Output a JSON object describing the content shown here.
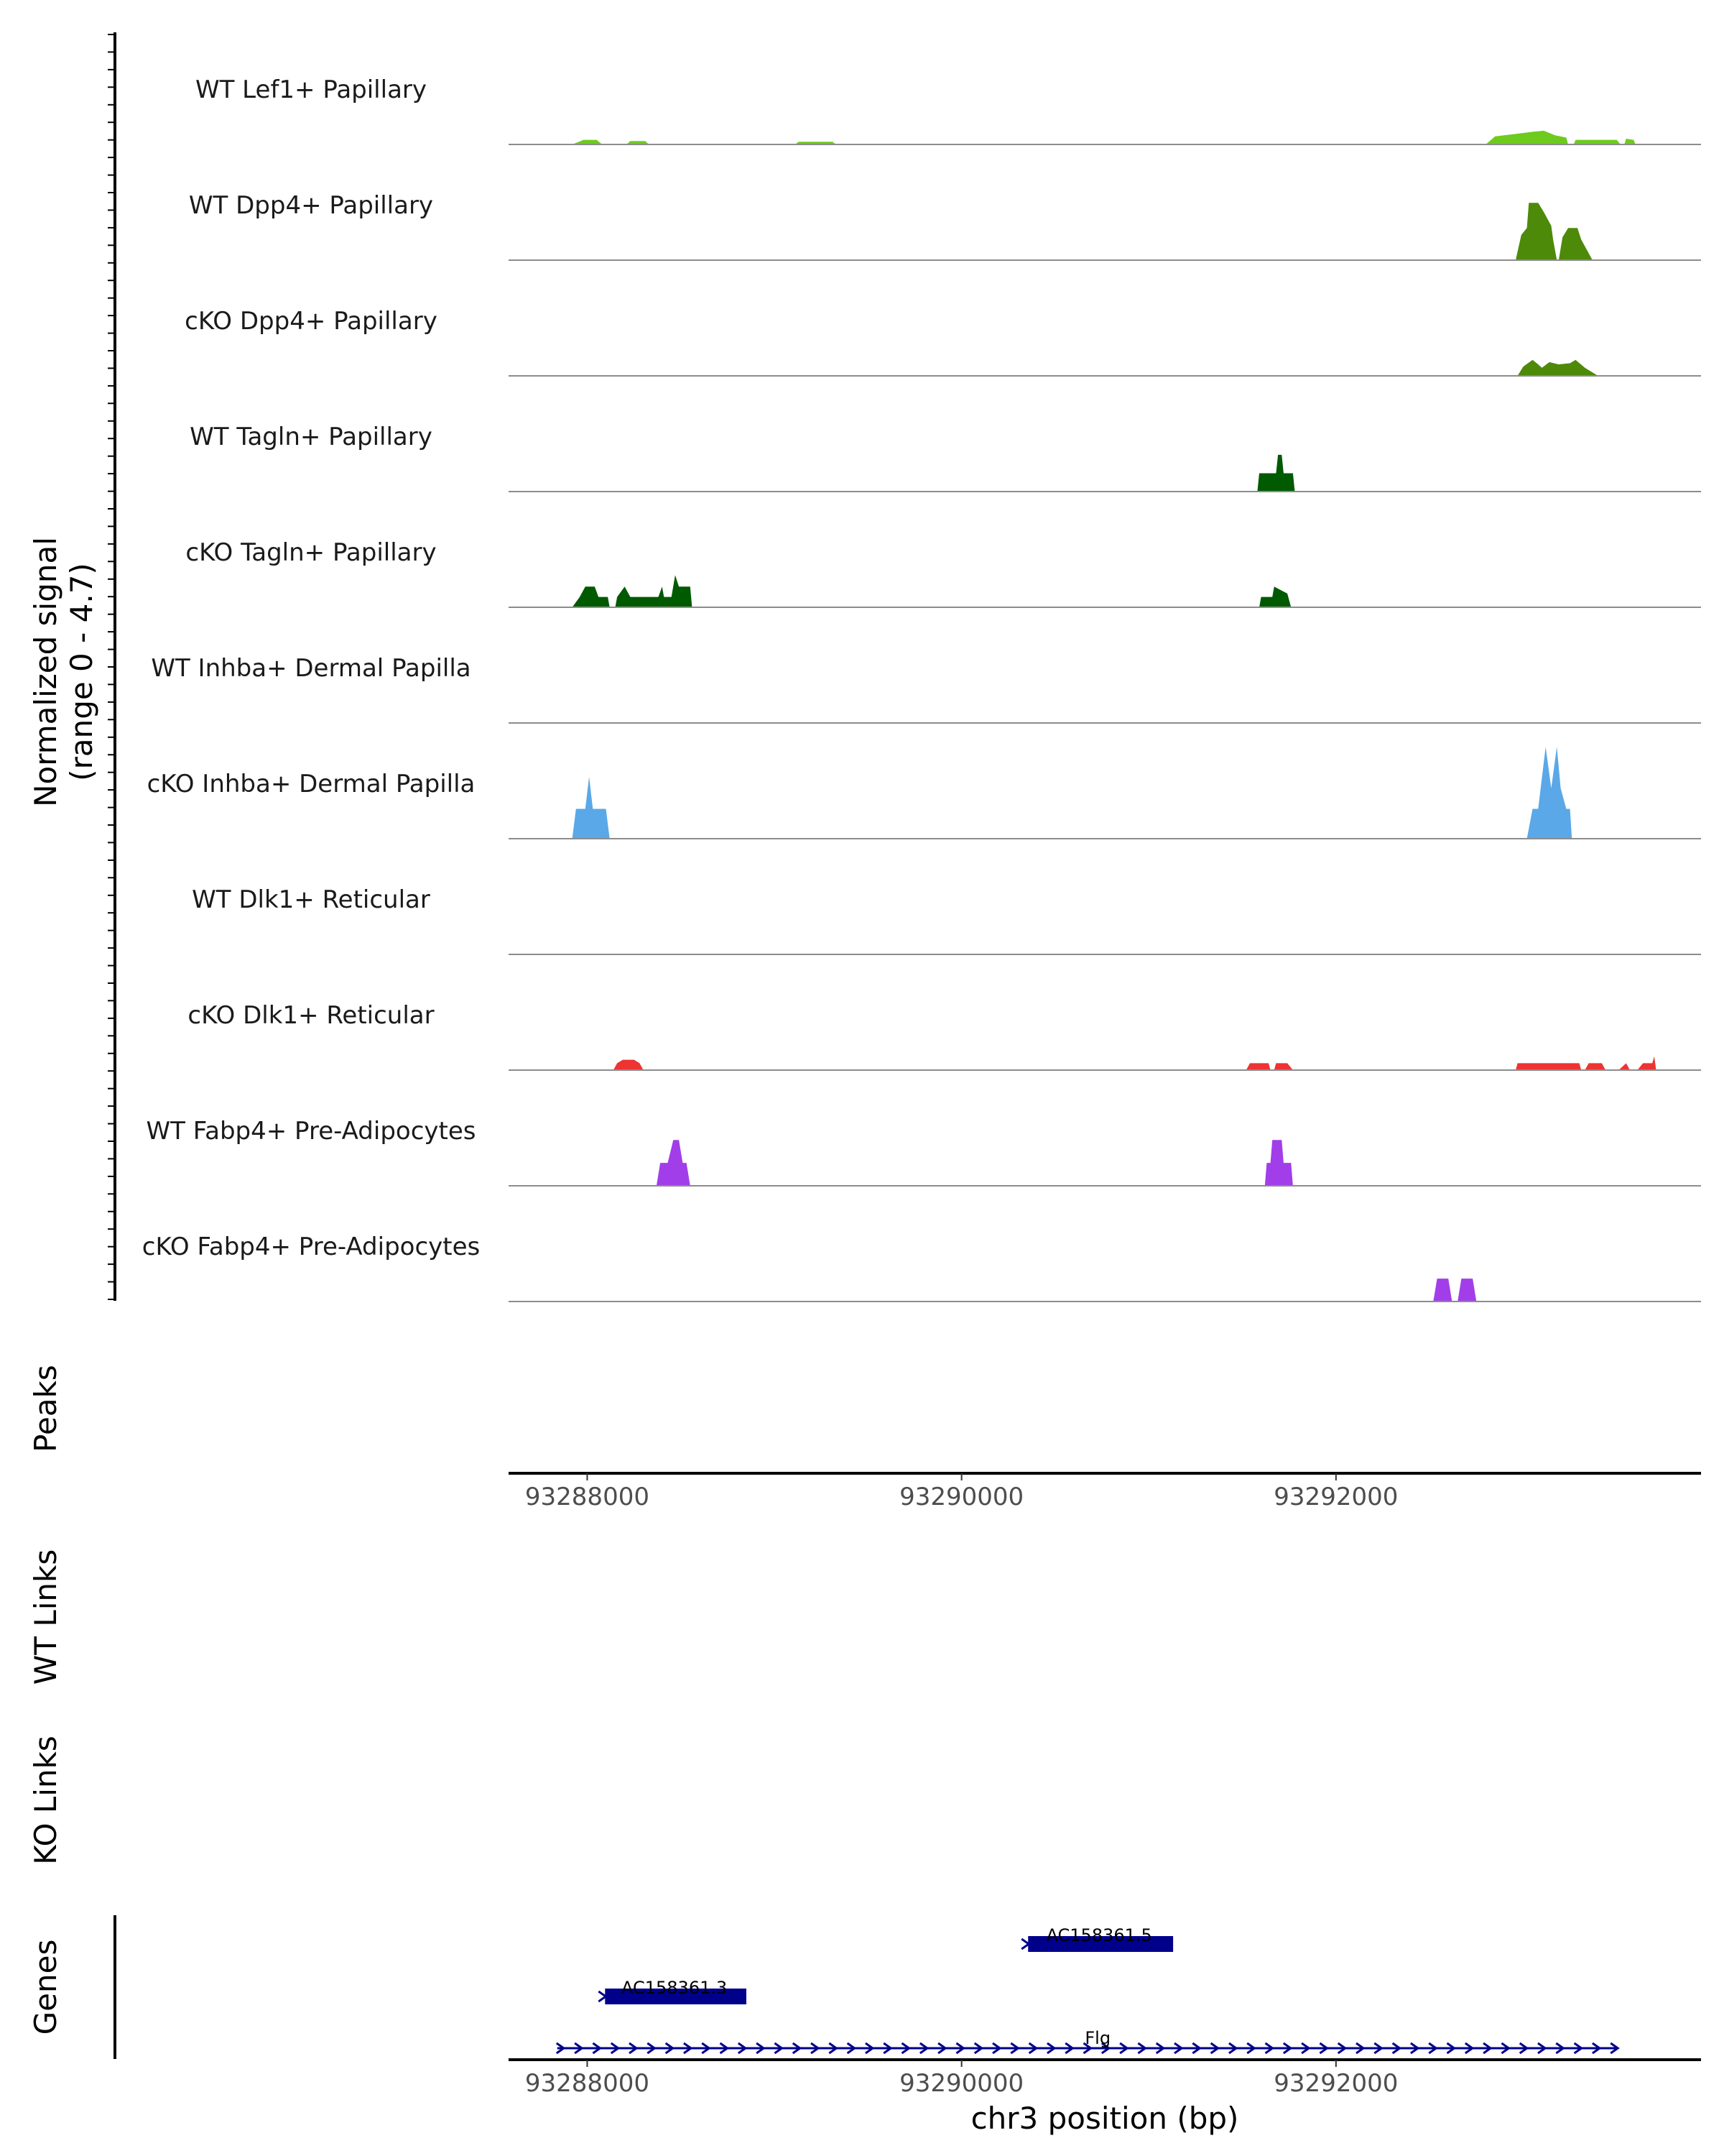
{
  "chart_data": {
    "type": "area",
    "region_title": "chr3 position (bp)",
    "xlim": [
      93287580,
      93293950
    ],
    "x_ticks": [
      {
        "value": 93288000,
        "label": "93288000"
      },
      {
        "value": 93290000,
        "label": "93290000"
      },
      {
        "value": 93292000,
        "label": "93292000"
      }
    ],
    "coverage_ylabel": [
      "Normalized signal",
      "(range 0 - 4.7)"
    ],
    "y_range": [
      0,
      4.7
    ],
    "y_minor_ticks": 72,
    "tracks": [
      {
        "name": "WT Lef1+ Papillary",
        "color": "#6ecb1e",
        "peaks": [
          [
            [
              93287920,
              0
            ],
            [
              93287980,
              0.2
            ],
            [
              93288050,
              0.2
            ],
            [
              93288080,
              0
            ]
          ],
          [
            [
              93288210,
              0
            ],
            [
              93288230,
              0.15
            ],
            [
              93288310,
              0.15
            ],
            [
              93288330,
              0
            ]
          ],
          [
            [
              93289110,
              0
            ],
            [
              93289130,
              0.12
            ],
            [
              93289310,
              0.12
            ],
            [
              93289330,
              0
            ]
          ],
          [
            [
              93292800,
              0
            ],
            [
              93292850,
              0.35
            ],
            [
              93292950,
              0.45
            ],
            [
              93293050,
              0.55
            ],
            [
              93293110,
              0.6
            ],
            [
              93293170,
              0.4
            ],
            [
              93293230,
              0.3
            ],
            [
              93293240,
              0
            ],
            [
              93293270,
              0
            ],
            [
              93293280,
              0.2
            ],
            [
              93293500,
              0.2
            ],
            [
              93293520,
              0
            ],
            [
              93293540,
              0
            ],
            [
              93293550,
              0.25
            ],
            [
              93293590,
              0.2
            ],
            [
              93293600,
              0
            ]
          ]
        ]
      },
      {
        "name": "WT Dpp4+ Papillary",
        "color": "#4d8a0a",
        "peaks": [
          [
            [
              93292960,
              0
            ],
            [
              93292990,
              1.1
            ],
            [
              93293020,
              1.4
            ],
            [
              93293030,
              2.5
            ],
            [
              93293080,
              2.5
            ],
            [
              93293110,
              2.1
            ],
            [
              93293150,
              1.5
            ],
            [
              93293160,
              0.9
            ],
            [
              93293180,
              0
            ],
            [
              93293190,
              0
            ],
            [
              93293210,
              1.0
            ],
            [
              93293240,
              1.4
            ],
            [
              93293290,
              1.4
            ],
            [
              93293310,
              0.9
            ],
            [
              93293370,
              0
            ]
          ]
        ]
      },
      {
        "name": "cKO Dpp4+ Papillary",
        "color": "#4d8a0a",
        "peaks": [
          [
            [
              93292970,
              0
            ],
            [
              93293000,
              0.4
            ],
            [
              93293050,
              0.7
            ],
            [
              93293080,
              0.5
            ],
            [
              93293100,
              0.35
            ],
            [
              93293140,
              0.6
            ],
            [
              93293190,
              0.5
            ],
            [
              93293250,
              0.55
            ],
            [
              93293280,
              0.7
            ],
            [
              93293330,
              0.35
            ],
            [
              93293400,
              0
            ]
          ]
        ]
      },
      {
        "name": "WT Tagln+ Papillary",
        "color": "#005a00",
        "peaks": [
          [
            [
              93291580,
              0
            ],
            [
              93291590,
              0.8
            ],
            [
              93291680,
              0.8
            ],
            [
              93291690,
              1.6
            ],
            [
              93291710,
              1.6
            ],
            [
              93291720,
              0.8
            ],
            [
              93291770,
              0.8
            ],
            [
              93291780,
              0
            ]
          ]
        ]
      },
      {
        "name": "cKO Tagln+ Papillary",
        "color": "#005a00",
        "peaks": [
          [
            [
              93287920,
              0
            ],
            [
              93287960,
              0.45
            ],
            [
              93287990,
              0.9
            ],
            [
              93288040,
              0.9
            ],
            [
              93288060,
              0.45
            ],
            [
              93288110,
              0.45
            ],
            [
              93288120,
              0
            ]
          ],
          [
            [
              93288150,
              0
            ],
            [
              93288160,
              0.45
            ],
            [
              93288200,
              0.9
            ],
            [
              93288230,
              0.45
            ],
            [
              93288380,
              0.45
            ],
            [
              93288400,
              0.9
            ],
            [
              93288410,
              0.45
            ],
            [
              93288450,
              0.45
            ],
            [
              93288470,
              1.4
            ],
            [
              93288490,
              0.9
            ],
            [
              93288550,
              0.9
            ],
            [
              93288560,
              0
            ]
          ],
          [
            [
              93291590,
              0
            ],
            [
              93291600,
              0.45
            ],
            [
              93291660,
              0.45
            ],
            [
              93291670,
              0.9
            ],
            [
              93291740,
              0.6
            ],
            [
              93291760,
              0
            ]
          ]
        ]
      },
      {
        "name": "WT Inhba+ Dermal Papilla",
        "color": "#5aa8e8",
        "peaks": []
      },
      {
        "name": "cKO Inhba+ Dermal Papilla",
        "color": "#5aa8e8",
        "peaks": [
          [
            [
              93287920,
              0
            ],
            [
              93287940,
              1.3
            ],
            [
              93287990,
              1.3
            ],
            [
              93288010,
              2.7
            ],
            [
              93288030,
              1.3
            ],
            [
              93288100,
              1.3
            ],
            [
              93288120,
              0
            ]
          ],
          [
            [
              93293020,
              0
            ],
            [
              93293050,
              1.3
            ],
            [
              93293080,
              1.3
            ],
            [
              93293120,
              4.0
            ],
            [
              93293150,
              2.2
            ],
            [
              93293180,
              4.0
            ],
            [
              93293200,
              2.2
            ],
            [
              93293230,
              1.3
            ],
            [
              93293250,
              1.3
            ],
            [
              93293260,
              0
            ]
          ]
        ]
      },
      {
        "name": "WT Dlk1+ Reticular",
        "color": "#ee3333",
        "peaks": []
      },
      {
        "name": "cKO Dlk1+ Reticular",
        "color": "#ee3333",
        "peaks": [
          [
            [
              93288140,
              0
            ],
            [
              93288160,
              0.3
            ],
            [
              93288190,
              0.45
            ],
            [
              93288250,
              0.45
            ],
            [
              93288280,
              0.3
            ],
            [
              93288300,
              0
            ]
          ],
          [
            [
              93291520,
              0
            ],
            [
              93291540,
              0.3
            ],
            [
              93291640,
              0.3
            ],
            [
              93291650,
              0
            ],
            [
              93291670,
              0
            ],
            [
              93291680,
              0.3
            ],
            [
              93291740,
              0.3
            ],
            [
              93291770,
              0
            ]
          ],
          [
            [
              93292960,
              0
            ],
            [
              93292970,
              0.3
            ],
            [
              93293300,
              0.3
            ],
            [
              93293310,
              0
            ],
            [
              93293330,
              0
            ],
            [
              93293350,
              0.3
            ],
            [
              93293420,
              0.3
            ],
            [
              93293440,
              0
            ]
          ],
          [
            [
              93293510,
              0
            ],
            [
              93293550,
              0.3
            ],
            [
              93293570,
              0
            ]
          ],
          [
            [
              93293610,
              0
            ],
            [
              93293640,
              0.3
            ],
            [
              93293690,
              0.3
            ],
            [
              93293700,
              0.6
            ],
            [
              93293710,
              0
            ]
          ]
        ]
      },
      {
        "name": "WT Fabp4+ Pre-Adipocytes",
        "color": "#a23ee9",
        "peaks": [
          [
            [
              93288370,
              0
            ],
            [
              93288390,
              1.0
            ],
            [
              93288430,
              1.0
            ],
            [
              93288460,
              2.0
            ],
            [
              93288490,
              2.0
            ],
            [
              93288510,
              1.0
            ],
            [
              93288530,
              1.0
            ],
            [
              93288550,
              0
            ]
          ],
          [
            [
              93291620,
              0
            ],
            [
              93291630,
              1.0
            ],
            [
              93291650,
              1.0
            ],
            [
              93291660,
              2.0
            ],
            [
              93291710,
              2.0
            ],
            [
              93291720,
              1.0
            ],
            [
              93291760,
              1.0
            ],
            [
              93291770,
              0
            ]
          ]
        ]
      },
      {
        "name": "cKO Fabp4+ Pre-Adipocytes",
        "color": "#a23ee9",
        "peaks": [
          [
            [
              93292520,
              0
            ],
            [
              93292540,
              1.0
            ],
            [
              93292600,
              1.0
            ],
            [
              93292620,
              0
            ]
          ],
          [
            [
              93292650,
              0
            ],
            [
              93292670,
              1.0
            ],
            [
              93292730,
              1.0
            ],
            [
              93292750,
              0
            ]
          ]
        ]
      }
    ],
    "lower_tracks": [
      "Peaks",
      "WT Links",
      "KO Links",
      "Genes"
    ],
    "genes": [
      {
        "name": "AC158361.5",
        "start": 93290340,
        "end": 93291130,
        "row": 1,
        "strand": "+"
      },
      {
        "name": "AC158361.3",
        "start": 93288080,
        "end": 93288850,
        "row": 2,
        "strand": "+"
      },
      {
        "name": "Flg",
        "start": 93287840,
        "end": 93293500,
        "row": 3,
        "strand": "+"
      }
    ],
    "gene_color": "#00008b"
  }
}
